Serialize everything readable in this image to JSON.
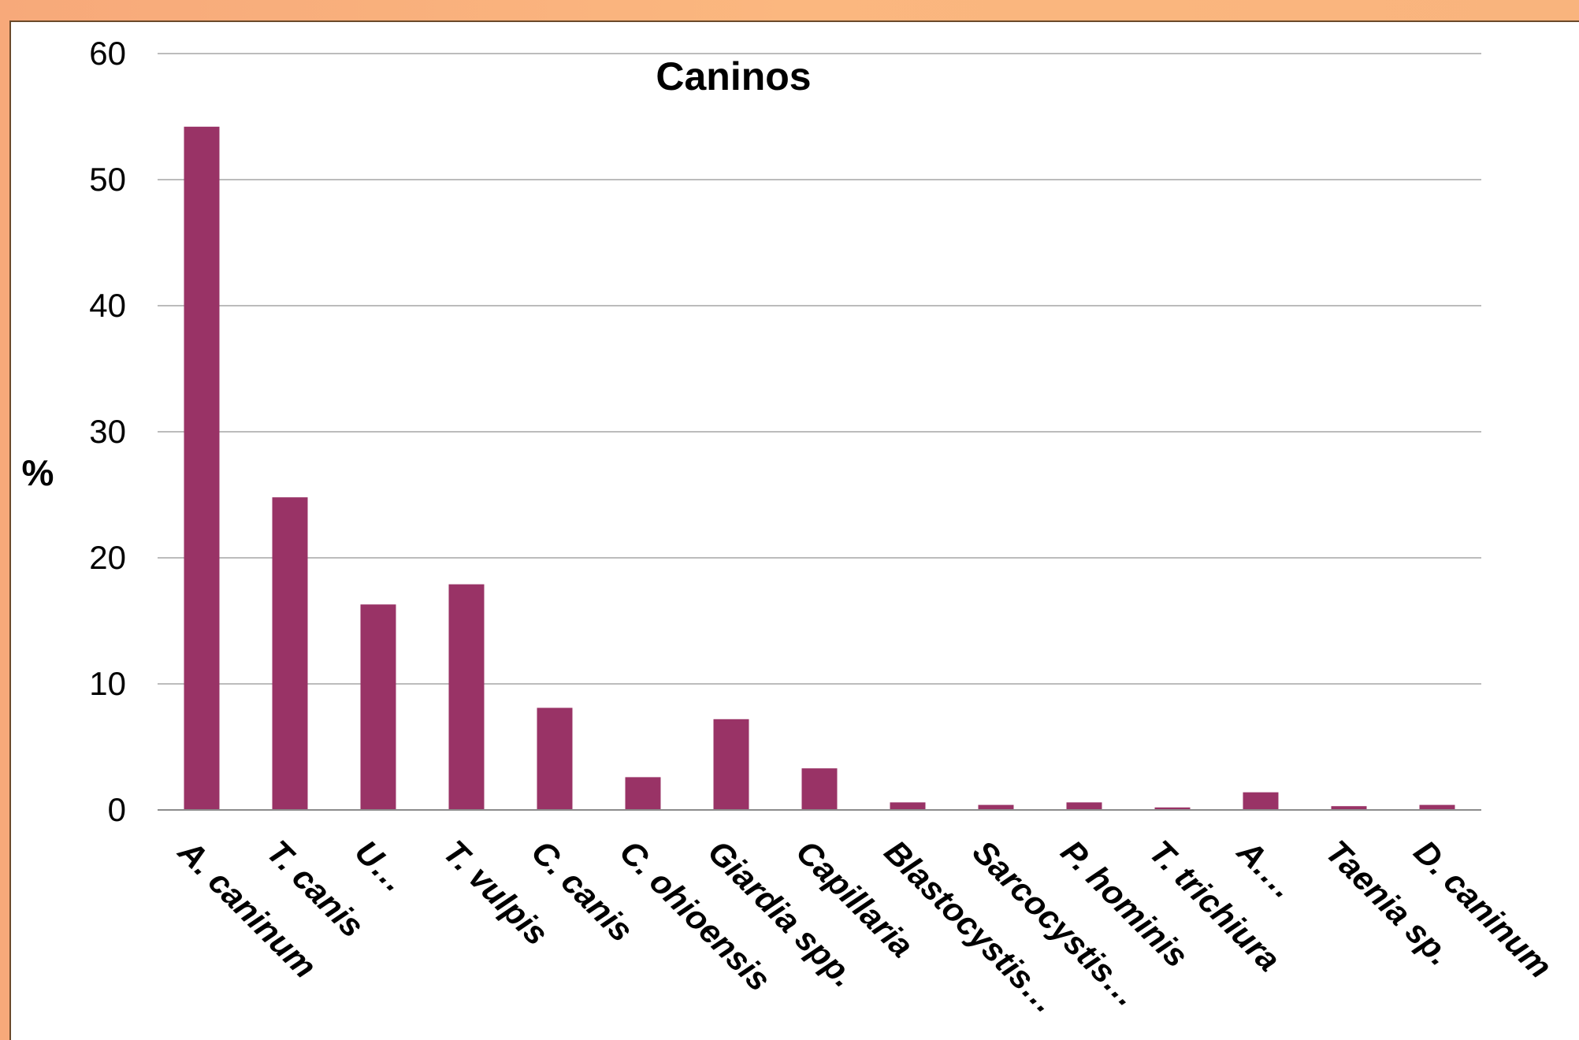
{
  "chart_data": {
    "type": "bar",
    "title": "Caninos",
    "ylabel": "%",
    "xlabel": "",
    "ylim": [
      0,
      60
    ],
    "yticks": [
      0,
      10,
      20,
      30,
      40,
      50,
      60
    ],
    "grid": true,
    "legend": "none",
    "bar_color": "#993366",
    "categories": [
      "A. caninum",
      "T. canis",
      "U…",
      "T. vulpis",
      "C. canis",
      "C. ohioensis",
      "Giardia spp.",
      "Capillaria",
      "Blastocystis…",
      "Sarcocystis…",
      "P. hominis",
      "T. trichiura",
      "A.…",
      "Taenia sp.",
      "D. caninum"
    ],
    "values": [
      54.2,
      24.8,
      16.3,
      17.9,
      8.1,
      2.6,
      7.2,
      3.3,
      0.6,
      0.4,
      0.6,
      0.2,
      1.4,
      0.3,
      0.4
    ]
  }
}
